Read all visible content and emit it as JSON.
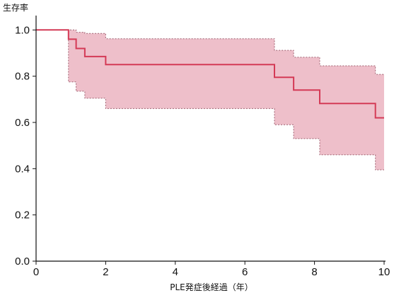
{
  "chart_data": {
    "type": "line",
    "title": "",
    "ylabel": "生存率",
    "xlabel": "PLE発症後経過（年）",
    "xlim": [
      0,
      10
    ],
    "ylim": [
      0,
      1.05
    ],
    "x_ticks": [
      "0",
      "2",
      "4",
      "6",
      "8",
      "10"
    ],
    "y_ticks": [
      "0.0",
      "0.2",
      "0.4",
      "0.6",
      "0.8",
      "1.0"
    ],
    "grid": false,
    "legend": "none",
    "colors": {
      "line": "#d43a56",
      "band_fill": "#eebfca",
      "band_edge": "#a06070",
      "axis": "#111111"
    },
    "series": [
      {
        "style": "step",
        "survival": [
          [
            0.0,
            1.0
          ],
          [
            0.93,
            0.96
          ],
          [
            1.15,
            0.92
          ],
          [
            1.4,
            0.885
          ],
          [
            2.0,
            0.85
          ],
          [
            6.85,
            0.795
          ],
          [
            7.4,
            0.74
          ],
          [
            8.15,
            0.682
          ],
          [
            9.75,
            0.62
          ],
          [
            10.0,
            0.62
          ]
        ],
        "ci_upper": [
          [
            0.0,
            1.0
          ],
          [
            0.93,
            1.0
          ],
          [
            1.15,
            0.99
          ],
          [
            1.4,
            0.985
          ],
          [
            2.0,
            0.962
          ],
          [
            6.85,
            0.912
          ],
          [
            7.4,
            0.882
          ],
          [
            8.15,
            0.845
          ],
          [
            9.75,
            0.808
          ],
          [
            10.0,
            0.808
          ]
        ],
        "ci_lower": [
          [
            0.0,
            1.0
          ],
          [
            0.93,
            0.775
          ],
          [
            1.15,
            0.735
          ],
          [
            1.4,
            0.705
          ],
          [
            2.0,
            0.66
          ],
          [
            6.85,
            0.59
          ],
          [
            7.4,
            0.53
          ],
          [
            8.15,
            0.46
          ],
          [
            9.75,
            0.395
          ],
          [
            10.0,
            0.395
          ]
        ]
      }
    ]
  }
}
